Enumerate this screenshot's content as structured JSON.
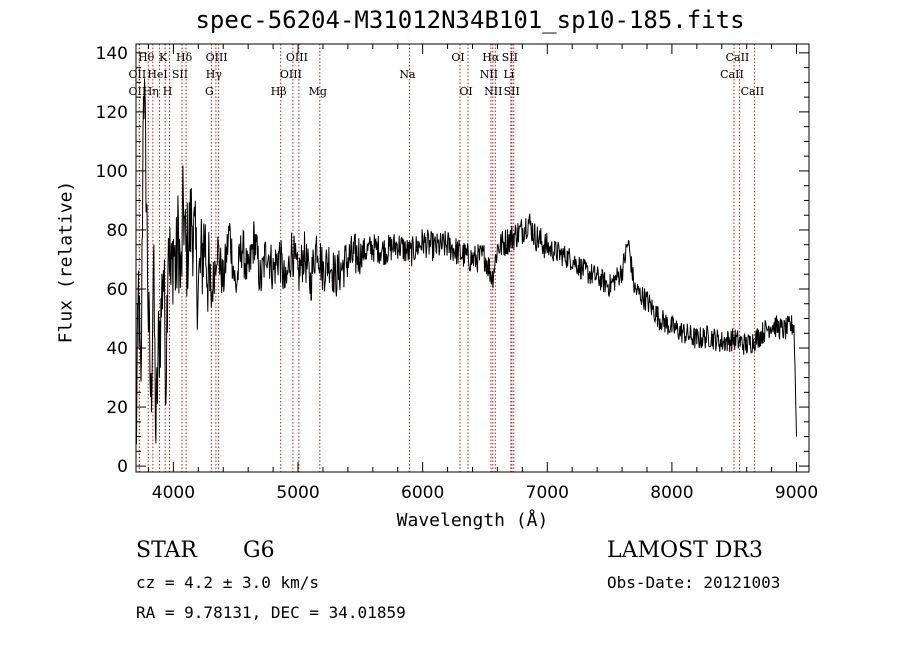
{
  "chart_data": {
    "type": "line",
    "title": "spec-56204-M31012N34B101_sp10-185.fits",
    "xlabel": "Wavelength (Å)",
    "ylabel": "Flux (relative)",
    "xlim": [
      3700,
      9100
    ],
    "ylim": [
      -2,
      143
    ],
    "xticks": [
      4000,
      5000,
      6000,
      7000,
      8000,
      9000
    ],
    "yticks": [
      0,
      20,
      40,
      60,
      80,
      100,
      120,
      140
    ],
    "series": [
      {
        "name": "flux",
        "x": [
          3700,
          3720,
          3740,
          3760,
          3780,
          3800,
          3820,
          3840,
          3860,
          3880,
          3900,
          3920,
          3940,
          3960,
          3980,
          4000,
          4020,
          4040,
          4060,
          4080,
          4100,
          4150,
          4200,
          4250,
          4300,
          4350,
          4400,
          4450,
          4500,
          4550,
          4600,
          4650,
          4700,
          4750,
          4800,
          4850,
          4900,
          4950,
          5000,
          5050,
          5100,
          5150,
          5200,
          5250,
          5300,
          5400,
          5500,
          5600,
          5700,
          5800,
          5900,
          6000,
          6100,
          6200,
          6300,
          6400,
          6500,
          6560,
          6600,
          6700,
          6800,
          6850,
          6900,
          6950,
          7000,
          7100,
          7200,
          7300,
          7400,
          7500,
          7600,
          7650,
          7700,
          7800,
          7900,
          8000,
          8100,
          8200,
          8300,
          8400,
          8500,
          8600,
          8700,
          8800,
          8900,
          8980,
          9000
        ],
        "y": [
          3,
          60,
          20,
          135,
          100,
          50,
          20,
          70,
          10,
          40,
          50,
          70,
          30,
          85,
          60,
          75,
          65,
          80,
          60,
          90,
          70,
          85,
          60,
          78,
          55,
          75,
          62,
          80,
          60,
          75,
          64,
          78,
          62,
          74,
          66,
          72,
          60,
          74,
          64,
          72,
          62,
          76,
          66,
          70,
          64,
          70,
          72,
          74,
          73,
          75,
          72,
          76,
          74,
          75,
          72,
          70,
          71,
          64,
          74,
          77,
          80,
          83,
          78,
          76,
          74,
          72,
          70,
          66,
          64,
          61,
          66,
          76,
          60,
          56,
          50,
          47,
          45,
          43,
          44,
          42,
          43,
          41,
          44,
          48,
          46,
          48,
          10
        ]
      }
    ],
    "lines": [
      {
        "name": "OII",
        "wl": 3727,
        "row": 2
      },
      {
        "name": "Hθ",
        "wl": 3798,
        "row": 0
      },
      {
        "name": "OII",
        "wl": 3727,
        "row": 1
      },
      {
        "name": "Hη",
        "wl": 3835,
        "row": 2
      },
      {
        "name": "K",
        "wl": 3934,
        "row": 0
      },
      {
        "name": "HeI",
        "wl": 3889,
        "row": 1
      },
      {
        "name": "H",
        "wl": 3969,
        "row": 2
      },
      {
        "name": "SII",
        "wl": 4069,
        "row": 1
      },
      {
        "name": "Hδ",
        "wl": 4102,
        "row": 0
      },
      {
        "name": "OIII",
        "wl": 4363,
        "row": 0
      },
      {
        "name": "Hγ",
        "wl": 4341,
        "row": 1
      },
      {
        "name": "G",
        "wl": 4305,
        "row": 2
      },
      {
        "name": "Hβ",
        "wl": 4861,
        "row": 2
      },
      {
        "name": "OIII",
        "wl": 5007,
        "row": 0
      },
      {
        "name": "OIII",
        "wl": 4959,
        "row": 1
      },
      {
        "name": "Mg",
        "wl": 5175,
        "row": 2
      },
      {
        "name": "Na",
        "wl": 5894,
        "row": 1
      },
      {
        "name": "OI",
        "wl": 6300,
        "row": 0
      },
      {
        "name": "OI",
        "wl": 6364,
        "row": 2
      },
      {
        "name": "Hα",
        "wl": 6563,
        "row": 0
      },
      {
        "name": "NII",
        "wl": 6548,
        "row": 1
      },
      {
        "name": "NII",
        "wl": 6583,
        "row": 2
      },
      {
        "name": "SII",
        "wl": 6716,
        "row": 0
      },
      {
        "name": "Li",
        "wl": 6708,
        "row": 1
      },
      {
        "name": "SII",
        "wl": 6731,
        "row": 2
      },
      {
        "name": "CaII",
        "wl": 8542,
        "row": 0
      },
      {
        "name": "CaII",
        "wl": 8498,
        "row": 1
      },
      {
        "name": "CaII",
        "wl": 8662,
        "row": 2
      }
    ]
  },
  "info": {
    "obj_class": "STAR",
    "subclass": "G6",
    "survey": "LAMOST DR3",
    "cz": "cz = 4.2 ± 3.0 km/s",
    "obs_date": "Obs-Date: 20121003",
    "radec": "RA =   9.78131, DEC =  34.01859"
  },
  "colors": {
    "line_marker": "#b22222",
    "spectrum": "#000000",
    "axes": "#000000"
  }
}
